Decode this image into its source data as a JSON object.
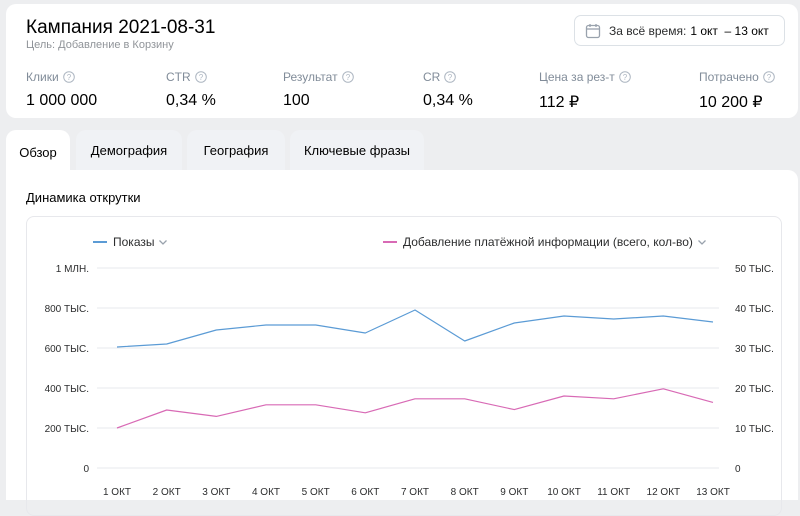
{
  "header": {
    "title": "Кампания 2021-08-31",
    "subtitle": "Цель: Добавление в Корзину",
    "date_label": "За всё время:",
    "date_value": "1 окт  – 13 окт"
  },
  "metrics": [
    {
      "label": "Клики",
      "value": "1 000 000"
    },
    {
      "label": "CTR",
      "value": "0,34 %"
    },
    {
      "label": "Результат",
      "value": "100"
    },
    {
      "label": "CR",
      "value": "0,34 %"
    },
    {
      "label": "Цена за рез-т",
      "value": "112 ₽"
    },
    {
      "label": "Потрачено",
      "value": "10 200 ₽"
    }
  ],
  "tabs": [
    {
      "label": "Обзор",
      "active": true
    },
    {
      "label": "Демография",
      "active": false
    },
    {
      "label": "География",
      "active": false
    },
    {
      "label": "Ключевые фразы",
      "active": false
    }
  ],
  "section_title": "Динамика открутки",
  "chart_data": {
    "type": "line",
    "x": [
      "1 ОКТ",
      "2 ОКТ",
      "3 ОКТ",
      "4 ОКТ",
      "5 ОКТ",
      "6 ОКТ",
      "7 ОКТ",
      "8 ОКТ",
      "9 ОКТ",
      "10 ОКТ",
      "11 ОКТ",
      "12 ОКТ",
      "13 ОКТ"
    ],
    "series": [
      {
        "name": "Показы",
        "axis": "left",
        "color": "#5b9bd5",
        "values": [
          605000,
          620000,
          690000,
          715000,
          715000,
          675000,
          790000,
          635000,
          725000,
          760000,
          745000,
          760000,
          730000
        ]
      },
      {
        "name": "Добавление платёжной информации (всего, кол-во)",
        "axis": "right",
        "color": "#d86ab5",
        "values": [
          10000,
          14500,
          12900,
          15800,
          15800,
          13800,
          17300,
          17300,
          14600,
          18000,
          17300,
          19800,
          16400
        ]
      }
    ],
    "y_left": {
      "min": 0,
      "max": 1000000,
      "ticks": [
        "0",
        "200 ТЫС.",
        "400 ТЫС.",
        "600 ТЫС.",
        "800 ТЫС.",
        "1 МЛН."
      ]
    },
    "y_right": {
      "min": 0,
      "max": 50000,
      "ticks": [
        "0",
        "10 ТЫС.",
        "20 ТЫС.",
        "30 ТЫС.",
        "40 ТЫС.",
        "50 ТЫС."
      ]
    },
    "grid": true,
    "legend": "top"
  }
}
